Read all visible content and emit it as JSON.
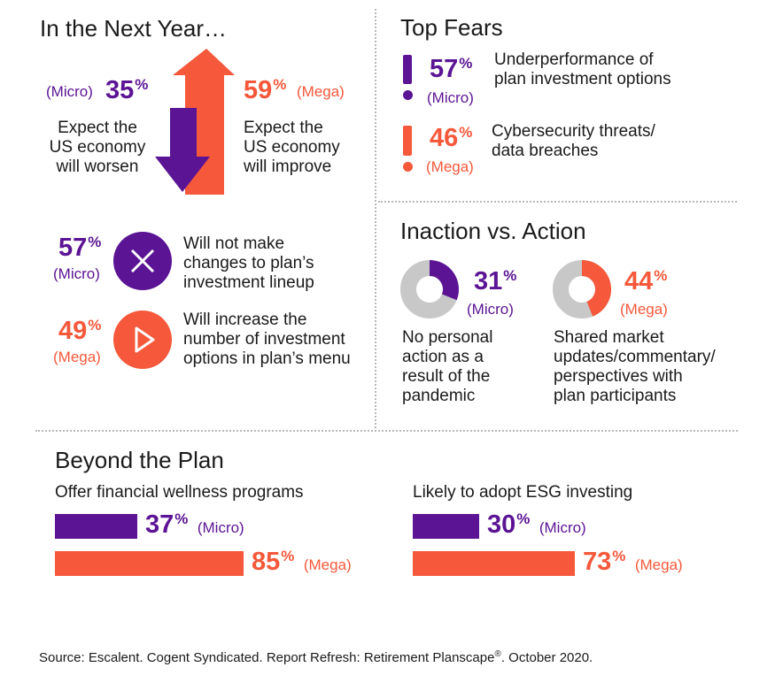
{
  "colors": {
    "purple": "#5b1494",
    "orange": "#f5583a",
    "grey": "#c8c8c8"
  },
  "next_year": {
    "title": "In the Next Year…",
    "worsen": {
      "pct": "35",
      "unit": "%",
      "group": "(Micro)",
      "text": [
        "Expect the",
        "US economy",
        "will worsen"
      ]
    },
    "improve": {
      "pct": "59",
      "unit": "%",
      "group": "(Mega)",
      "text": [
        "Expect the",
        "US economy",
        "will improve"
      ]
    }
  },
  "actions": [
    {
      "pct": "57",
      "unit": "%",
      "group": "(Micro)",
      "icon": "x-icon",
      "text": [
        "Will not make",
        "changes to plan’s",
        "investment lineup"
      ]
    },
    {
      "pct": "49",
      "unit": "%",
      "group": "(Mega)",
      "icon": "play-icon",
      "text": [
        "Will increase the",
        "number of investment",
        "options in plan’s menu"
      ]
    }
  ],
  "top_fears": {
    "title": "Top Fears",
    "items": [
      {
        "pct": "57",
        "unit": "%",
        "group": "(Micro)",
        "text": [
          "Underperformance of",
          "plan investment options"
        ]
      },
      {
        "pct": "46",
        "unit": "%",
        "group": "(Mega)",
        "text": [
          "Cybersecurity threats/",
          "data breaches"
        ]
      }
    ]
  },
  "inaction": {
    "title": "Inaction vs. Action",
    "items": [
      {
        "pct": "31",
        "unit": "%",
        "group": "(Micro)",
        "text": [
          "No personal",
          "action as a",
          "result of the",
          "pandemic"
        ]
      },
      {
        "pct": "44",
        "unit": "%",
        "group": "(Mega)",
        "text": [
          "Shared market",
          "updates/commentary/",
          "perspectives with",
          "plan participants"
        ]
      }
    ]
  },
  "beyond": {
    "title": "Beyond the Plan",
    "groups": [
      {
        "label": "Offer financial wellness programs",
        "bars": [
          {
            "pct": "37",
            "unit": "%",
            "group": "(Micro)"
          },
          {
            "pct": "85",
            "unit": "%",
            "group": "(Mega)"
          }
        ]
      },
      {
        "label": "Likely to adopt ESG investing",
        "bars": [
          {
            "pct": "30",
            "unit": "%",
            "group": "(Micro)"
          },
          {
            "pct": "73",
            "unit": "%",
            "group": "(Mega)"
          }
        ]
      }
    ]
  },
  "source": {
    "text": "Source: Escalent. Cogent Syndicated. Report Refresh: Retirement Planscape",
    "reg": "®",
    "tail": ". October 2020."
  },
  "chart_data": [
    {
      "type": "bar",
      "title": "In the Next Year…",
      "categories": [
        "Expect the US economy will worsen (Micro)",
        "Expect the US economy will improve (Mega)"
      ],
      "values": [
        35,
        59
      ],
      "unit": "%"
    },
    {
      "type": "bar",
      "title": "Top Fears",
      "categories": [
        "Underperformance of plan investment options (Micro)",
        "Cybersecurity threats/data breaches (Mega)"
      ],
      "values": [
        57,
        46
      ],
      "unit": "%"
    },
    {
      "type": "pie",
      "title": "Inaction vs. Action",
      "categories": [
        "No personal action as a result of the pandemic (Micro)",
        "Shared market updates/commentary/perspectives with plan participants (Mega)"
      ],
      "values": [
        31,
        44
      ],
      "unit": "%"
    },
    {
      "type": "bar",
      "title": "Beyond the Plan",
      "categories": [
        "Offer financial wellness programs",
        "Likely to adopt ESG investing"
      ],
      "series": [
        {
          "name": "Micro",
          "values": [
            37,
            30
          ]
        },
        {
          "name": "Mega",
          "values": [
            85,
            73
          ]
        }
      ],
      "unit": "%"
    }
  ]
}
